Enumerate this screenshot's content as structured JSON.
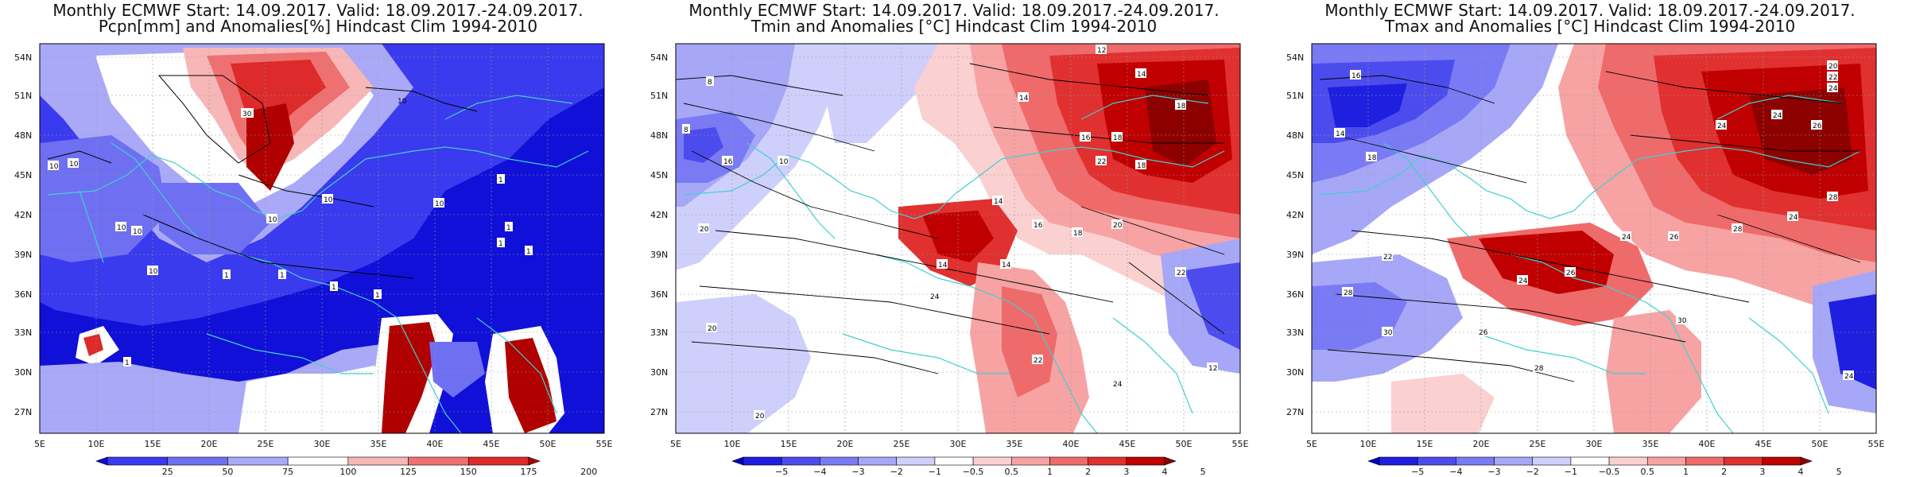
{
  "panels": [
    {
      "title1": "Monthly ECMWF Start: 14.09.2017. Valid: 18.09.2017.-24.09.2017.",
      "title2": "Pcpn[mm] and Anomalies[%] Hindcast Clim 1994-2010",
      "colorbar": {
        "labels": [
          "25",
          "50",
          "75",
          "100",
          "125",
          "150",
          "175",
          "200"
        ],
        "colors": [
          "#1010d8",
          "#3a3aee",
          "#6f6ff2",
          "#a9a9f7",
          "#ffffff",
          "#f7b7b7",
          "#ef7070",
          "#dd2a2a",
          "#b00000"
        ]
      },
      "contour_labels": [
        "30",
        "10",
        "10",
        "10",
        "10",
        "10",
        "10",
        "10",
        "1",
        "1",
        "1",
        "1",
        "1",
        "1",
        "1",
        "1",
        "1",
        "10",
        "10"
      ]
    },
    {
      "title1": "Monthly ECMWF Start: 14.09.2017. Valid: 18.09.2017.-24.09.2017.",
      "title2": "Tmin and Anomalies [°C] Hindcast Clim 1994-2010",
      "colorbar": {
        "labels": [
          "−5",
          "−4",
          "−3",
          "−2",
          "−1",
          "−0.5",
          "0.5",
          "1",
          "2",
          "3",
          "4",
          "5"
        ],
        "colors": [
          "#0000c8",
          "#1f1fe0",
          "#4c4cee",
          "#7a7af5",
          "#a7a7f8",
          "#cfcffb",
          "#ffffff",
          "#fbd0d0",
          "#f7a3a3",
          "#ef6a6a",
          "#e03030",
          "#c00000",
          "#8c0000"
        ]
      },
      "contour_labels": [
        "12",
        "14",
        "14",
        "18",
        "16",
        "18",
        "18",
        "22",
        "14",
        "20",
        "18",
        "16",
        "14",
        "14",
        "22",
        "20",
        "24",
        "20",
        "22",
        "24",
        "20",
        "10",
        "16",
        "12",
        "8",
        "8"
      ]
    },
    {
      "title1": "Monthly ECMWF Start: 14.09.2017. Valid: 18.09.2017.-24.09.2017.",
      "title2": "Tmax and Anomalies [°C] Hindcast Clim 1994-2010",
      "colorbar": {
        "labels": [
          "−5",
          "−4",
          "−3",
          "−2",
          "−1",
          "−0.5",
          "0.5",
          "1",
          "2",
          "3",
          "4",
          "5"
        ],
        "colors": [
          "#0000c8",
          "#1f1fe0",
          "#4c4cee",
          "#7a7af5",
          "#a7a7f8",
          "#cfcffb",
          "#ffffff",
          "#fbd0d0",
          "#f7a3a3",
          "#ef6a6a",
          "#e03030",
          "#c00000",
          "#8c0000"
        ]
      },
      "contour_labels": [
        "20",
        "22",
        "24",
        "16",
        "24",
        "14",
        "18",
        "24",
        "26",
        "28",
        "24",
        "28",
        "26",
        "24",
        "26",
        "30",
        "28",
        "22",
        "24",
        "30",
        "26",
        "28",
        "24"
      ]
    }
  ],
  "axes": {
    "lat_labels": [
      "54N",
      "51N",
      "48N",
      "45N",
      "42N",
      "39N",
      "36N",
      "33N",
      "30N",
      "27N"
    ],
    "lon_labels": [
      "5E",
      "10E",
      "15E",
      "20E",
      "25E",
      "30E",
      "35E",
      "40E",
      "45E",
      "50E",
      "55E"
    ]
  }
}
